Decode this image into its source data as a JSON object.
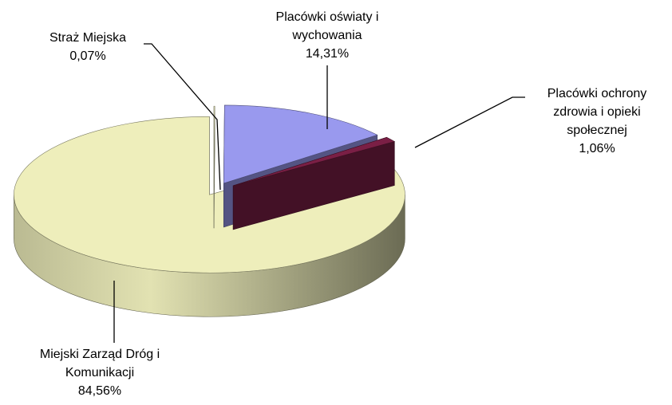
{
  "chart_data": {
    "type": "pie3d",
    "categories": [
      [
        "Straż Miejska"
      ],
      [
        "Placówki oświaty i",
        "wychowania"
      ],
      [
        "Placówki ochrony",
        "zdrowia i opieki",
        "społecznej"
      ],
      [
        "Miejski Zarząd Dróg i",
        "Komunikacji"
      ]
    ],
    "values": [
      0.07,
      14.31,
      1.06,
      84.56
    ],
    "value_labels": [
      "0,07%",
      "14,31%",
      "1,06%",
      "84,56%"
    ],
    "colors": [
      "#ffffd0",
      "#9999ee",
      "#7a1f45",
      "#eeeebb"
    ]
  }
}
